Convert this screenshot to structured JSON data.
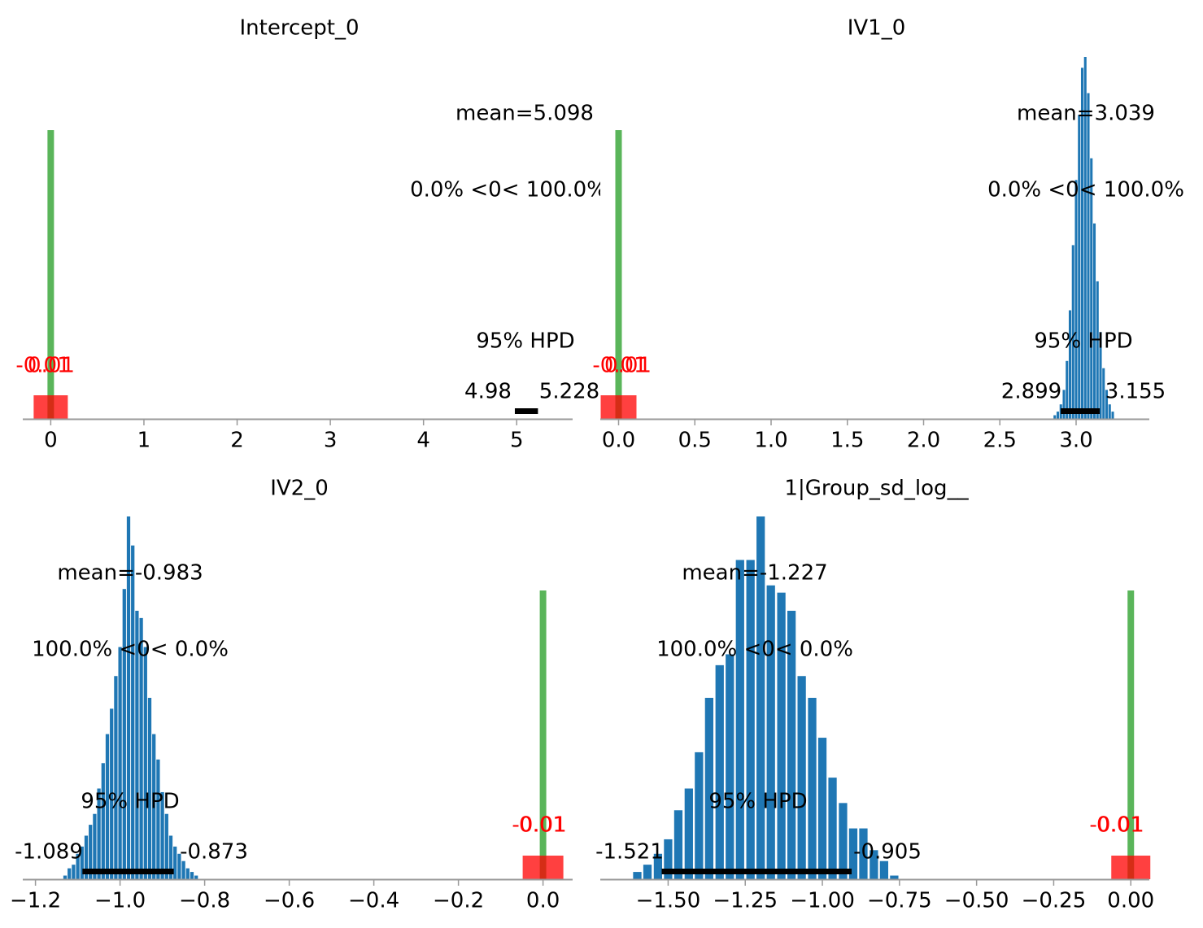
{
  "colors": {
    "bar": "#1f77b4",
    "rope": "#ff0000",
    "ref_line": "#2ca02c",
    "hpd_line": "#000000",
    "axis": "#999999",
    "rope_label": "#ff0000"
  },
  "chart_data": [
    {
      "type": "bar",
      "title": "Intercept_0",
      "mean_label": "mean=5.098",
      "ref_label": "0.0% <0< 100.0%",
      "hpd_title": "95% HPD",
      "hpd_low": 4.98,
      "hpd_high": 5.228,
      "hpd_low_label": "4.98",
      "hpd_high_label": "5.228",
      "rope_labels": [
        "-0.01",
        "0.01"
      ],
      "ref_value": 0,
      "xlim": [
        -0.3,
        5.6
      ],
      "xticks": [
        0,
        1,
        2,
        3,
        4,
        5
      ],
      "xtick_labels": [
        "0",
        "1",
        "2",
        "3",
        "4",
        "5"
      ],
      "bins": [],
      "counts": []
    },
    {
      "type": "bar",
      "title": "IV1_0",
      "mean_label": "mean=3.039",
      "ref_label": "0.0% <0< 100.0%",
      "hpd_title": "95% HPD",
      "hpd_low": 2.899,
      "hpd_high": 3.155,
      "hpd_low_label": "2.899",
      "hpd_high_label": "3.155",
      "rope_labels": [
        "-0.01",
        "0.01"
      ],
      "ref_value": 0,
      "xlim": [
        -0.12,
        3.48
      ],
      "xticks": [
        0.0,
        0.5,
        1.0,
        1.5,
        2.0,
        2.5,
        3.0
      ],
      "xtick_labels": [
        "0.0",
        "0.5",
        "1.0",
        "1.5",
        "2.0",
        "2.5",
        "3.0"
      ],
      "bins": [
        2.86,
        2.88,
        2.9,
        2.92,
        2.94,
        2.96,
        2.98,
        3.0,
        3.02,
        3.04,
        3.06,
        3.08,
        3.1,
        3.12,
        3.14,
        3.16,
        3.18,
        3.2,
        3.22,
        3.24
      ],
      "counts": [
        1,
        2,
        4,
        8,
        16,
        30,
        48,
        66,
        84,
        97,
        100,
        90,
        72,
        54,
        38,
        24,
        14,
        8,
        4,
        2
      ]
    },
    {
      "type": "bar",
      "title": "IV2_0",
      "mean_label": "mean=-0.983",
      "ref_label": "100.0% <0< 0.0%",
      "hpd_title": "95% HPD",
      "hpd_low": -1.089,
      "hpd_high": -0.873,
      "hpd_low_label": "-1.089",
      "hpd_high_label": "-0.873",
      "rope_labels": [
        "-0.01",
        "0.01"
      ],
      "ref_value": 0,
      "xlim": [
        -1.23,
        0.07
      ],
      "xticks": [
        -1.2,
        -1.0,
        -0.8,
        -0.6,
        -0.4,
        -0.2,
        0.0
      ],
      "xtick_labels": [
        "−1.2",
        "−1.0",
        "−0.8",
        "−0.6",
        "−0.4",
        "−0.2",
        "0.0"
      ],
      "bins": [
        -1.13,
        -1.12,
        -1.11,
        -1.1,
        -1.09,
        -1.08,
        -1.07,
        -1.06,
        -1.05,
        -1.04,
        -1.03,
        -1.02,
        -1.01,
        -1.0,
        -0.99,
        -0.98,
        -0.97,
        -0.96,
        -0.95,
        -0.94,
        -0.93,
        -0.92,
        -0.91,
        -0.9,
        -0.89,
        -0.88,
        -0.87,
        -0.86,
        -0.85,
        -0.84,
        -0.83,
        -0.82
      ],
      "counts": [
        1,
        3,
        4,
        7,
        9,
        12,
        15,
        18,
        25,
        32,
        40,
        47,
        56,
        64,
        80,
        100,
        92,
        74,
        72,
        64,
        50,
        40,
        33,
        24,
        18,
        12,
        9,
        7,
        5,
        3,
        2,
        1
      ]
    },
    {
      "type": "bar",
      "title": "1|Group_sd_log__",
      "mean_label": "mean=-1.227",
      "ref_label": "100.0% <0< 0.0%",
      "hpd_title": "95% HPD",
      "hpd_low": -1.521,
      "hpd_high": -0.905,
      "hpd_low_label": "-1.521",
      "hpd_high_label": "-0.905",
      "rope_labels": [
        "-0.01",
        "0.01"
      ],
      "ref_value": 0,
      "xlim": [
        -1.72,
        0.06
      ],
      "xticks": [
        -1.5,
        -1.25,
        -1.0,
        -0.75,
        -0.5,
        -0.25,
        0.0
      ],
      "xtick_labels": [
        "−1.50",
        "−1.25",
        "−1.00",
        "−0.75",
        "−0.50",
        "−0.25",
        "0.00"
      ],
      "bins": [
        -1.6,
        -1.567,
        -1.533,
        -1.5,
        -1.467,
        -1.433,
        -1.4,
        -1.367,
        -1.333,
        -1.3,
        -1.267,
        -1.233,
        -1.2,
        -1.167,
        -1.133,
        -1.1,
        -1.067,
        -1.033,
        -1.0,
        -0.967,
        -0.933,
        -0.9,
        -0.867,
        -0.833,
        -0.8,
        -0.767
      ],
      "counts": [
        2,
        4,
        7,
        11,
        19,
        25,
        35,
        50,
        59,
        62,
        88,
        88,
        100,
        81,
        79,
        74,
        56,
        50,
        39,
        28,
        21,
        14,
        14,
        8,
        5,
        1
      ]
    }
  ]
}
